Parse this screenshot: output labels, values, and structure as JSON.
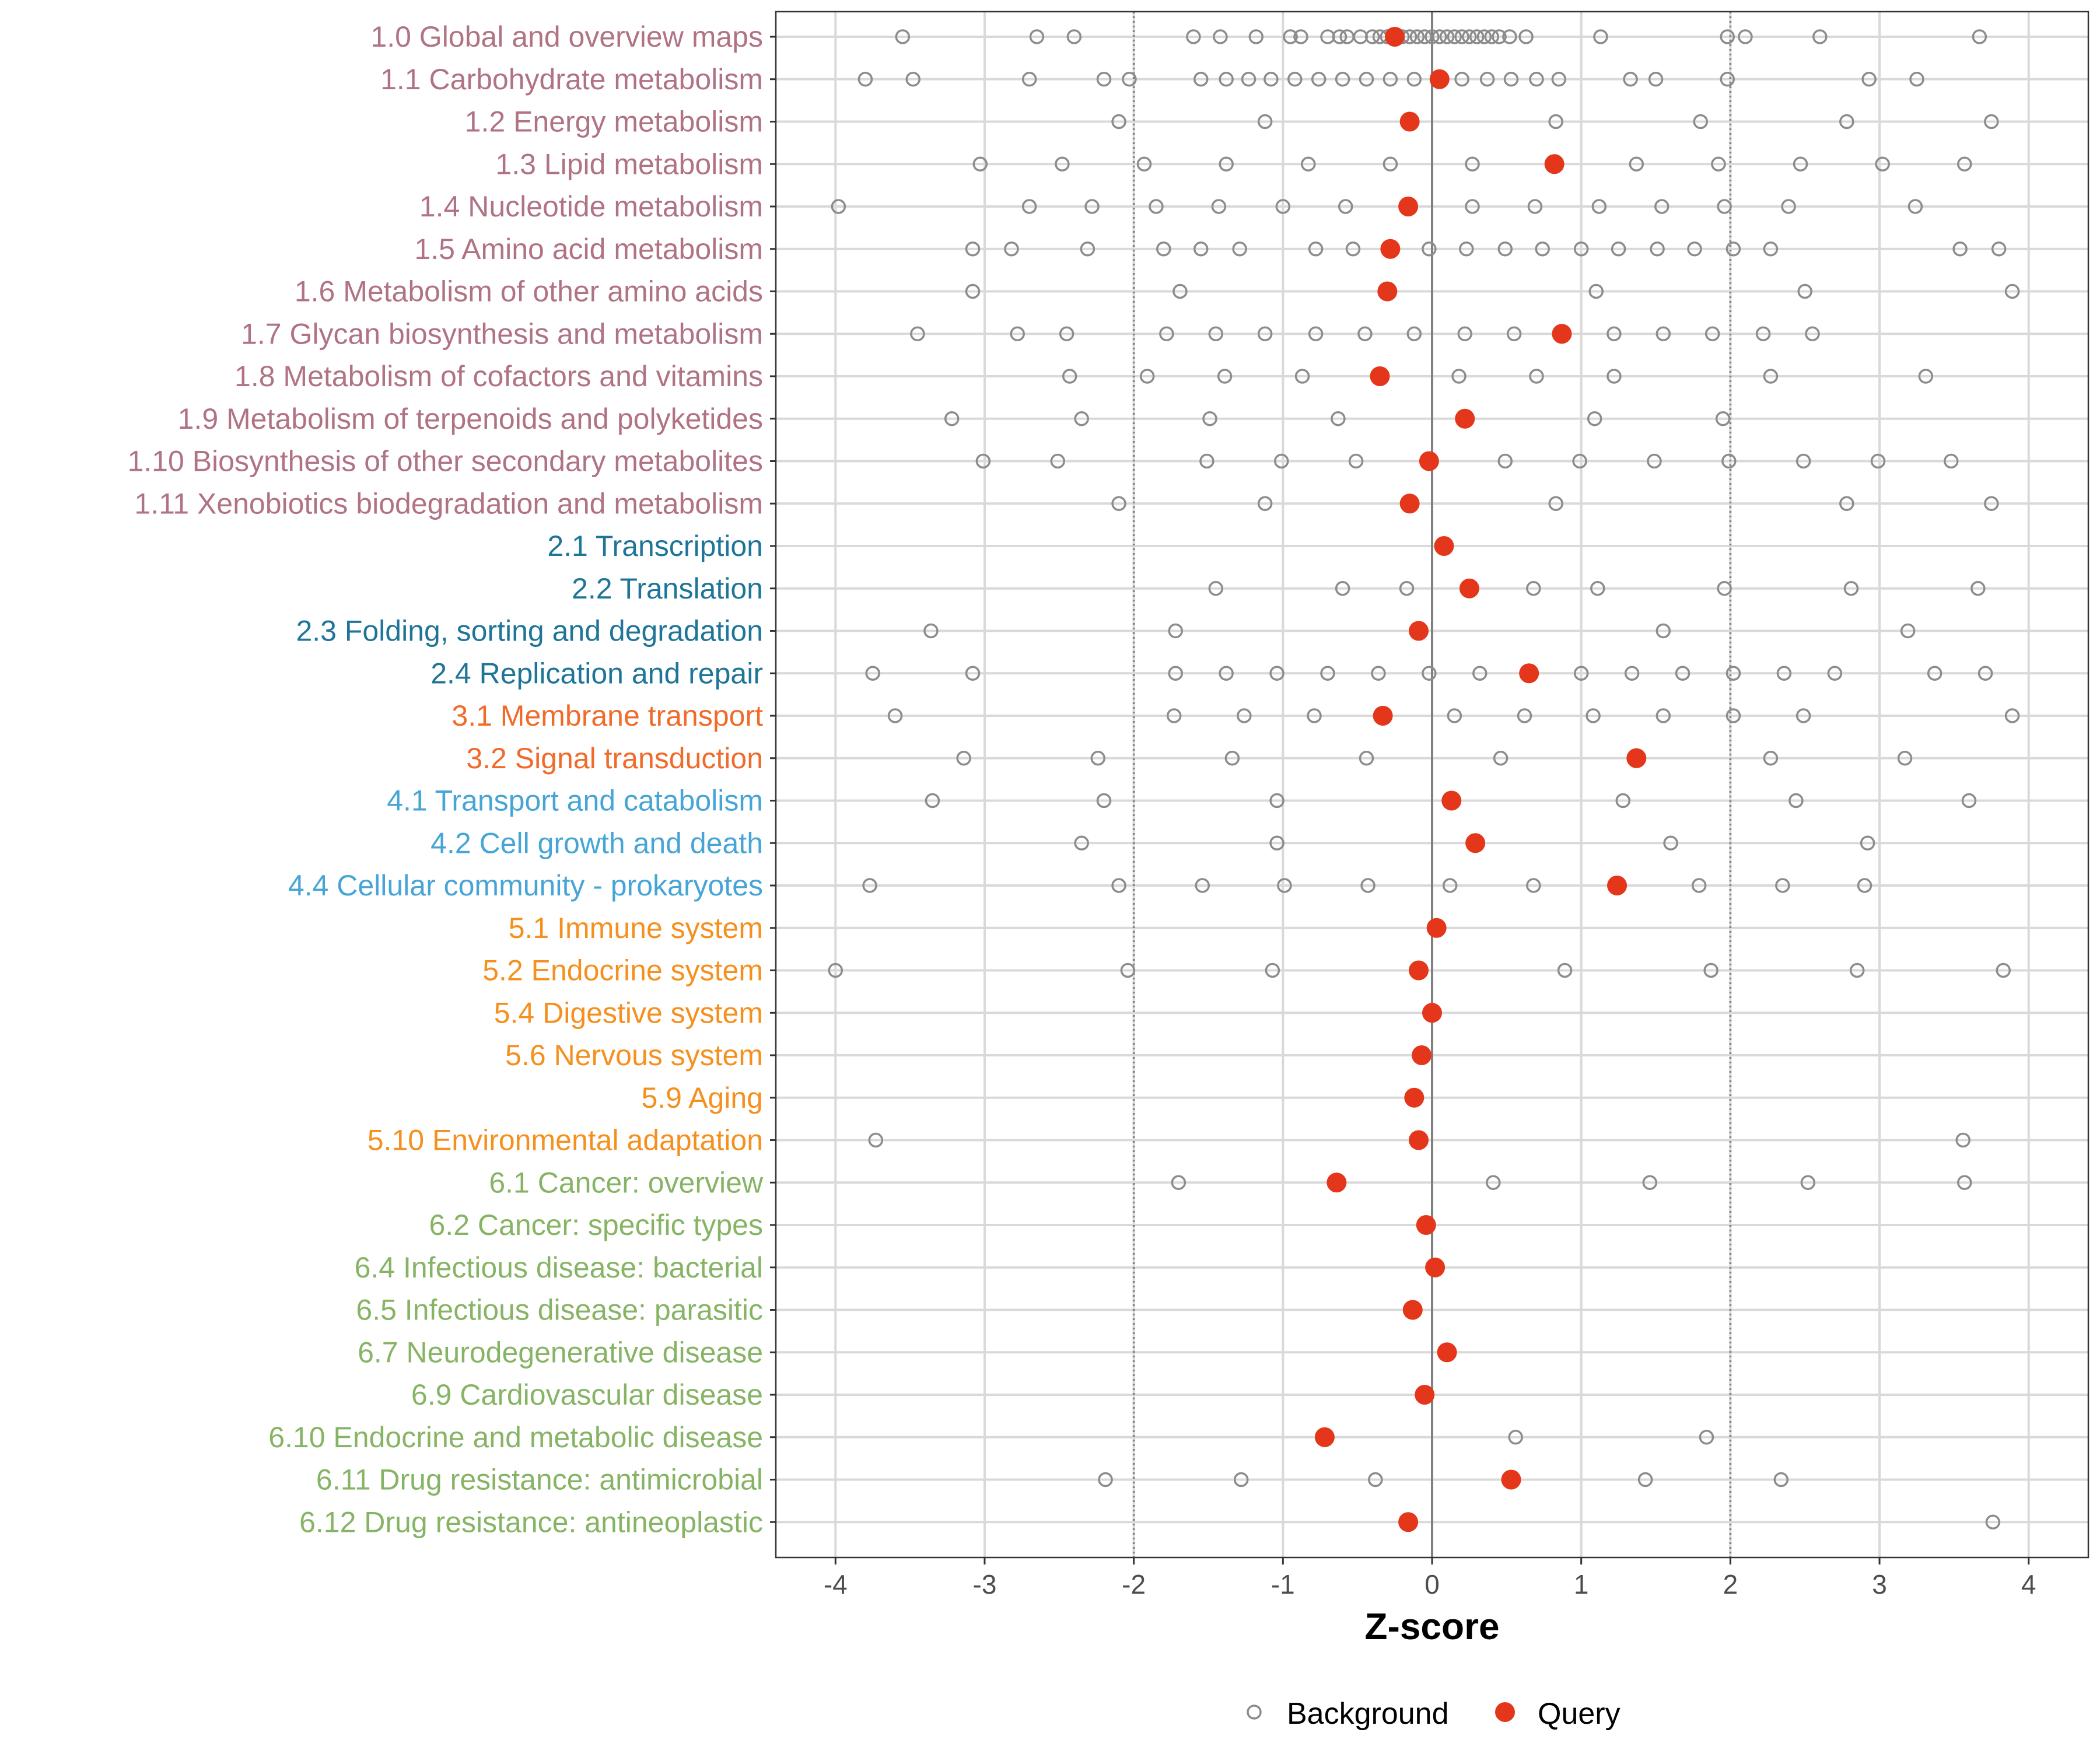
{
  "chart_data": {
    "type": "scatter",
    "xlabel": "Z-score",
    "ylabel": "",
    "xlim": [
      -4.4,
      4.4
    ],
    "xticks": [
      -4,
      -3,
      -2,
      -1,
      0,
      1,
      2,
      3,
      4
    ],
    "xtick_labels": [
      "-4",
      "-3",
      "-2",
      "-1",
      "0",
      "1",
      "2",
      "3",
      "4"
    ],
    "reference_lines": {
      "dotted": [
        -2,
        2
      ],
      "solid": [
        0
      ]
    },
    "grid": true,
    "legend_position": "bottom",
    "legend": [
      {
        "name": "Background",
        "style": "hollow-circle",
        "color": "#8c8c8c"
      },
      {
        "name": "Query",
        "style": "filled-circle",
        "color": "#e3361a"
      }
    ],
    "category_colors": {
      "metabolism": "#b07383",
      "genetic": "#1e7597",
      "environmental": "#f06a2a",
      "cellular": "#46a5d6",
      "organismal": "#f5901e",
      "disease": "#86b464"
    },
    "categories": [
      {
        "label": "1.0 Global and overview maps",
        "group": "metabolism",
        "query": -0.25,
        "background": [
          -3.55,
          -2.65,
          -2.4,
          -1.6,
          -1.42,
          -1.18,
          -0.95,
          -0.88,
          -0.7,
          -0.62,
          -0.57,
          -0.48,
          -0.4,
          -0.35,
          -0.3,
          -0.2,
          -0.15,
          -0.1,
          -0.05,
          0.0,
          0.05,
          0.1,
          0.15,
          0.2,
          0.25,
          0.3,
          0.35,
          0.4,
          0.45,
          0.52,
          0.63,
          1.13,
          1.98,
          2.1,
          2.6,
          3.67
        ]
      },
      {
        "label": "1.1 Carbohydrate metabolism",
        "group": "metabolism",
        "query": 0.05,
        "background": [
          -3.8,
          -3.48,
          -2.7,
          -2.2,
          -2.03,
          -1.55,
          -1.38,
          -1.23,
          -1.08,
          -0.92,
          -0.76,
          -0.6,
          -0.44,
          -0.28,
          -0.12,
          0.2,
          0.37,
          0.53,
          0.7,
          0.85,
          1.33,
          1.5,
          1.98,
          2.93,
          3.25
        ]
      },
      {
        "label": "1.2 Energy metabolism",
        "group": "metabolism",
        "query": -0.15,
        "background": [
          -2.1,
          -1.12,
          0.83,
          1.8,
          2.78,
          3.75
        ]
      },
      {
        "label": "1.3 Lipid metabolism",
        "group": "metabolism",
        "query": 0.82,
        "background": [
          -3.03,
          -2.48,
          -1.93,
          -1.38,
          -0.83,
          -0.28,
          0.27,
          1.37,
          1.92,
          2.47,
          3.02,
          3.57
        ]
      },
      {
        "label": "1.4 Nucleotide metabolism",
        "group": "metabolism",
        "query": -0.16,
        "background": [
          -3.98,
          -2.7,
          -2.28,
          -1.85,
          -1.43,
          -1.0,
          -0.58,
          0.27,
          0.69,
          1.12,
          1.54,
          1.96,
          2.39,
          3.24
        ]
      },
      {
        "label": "1.5 Amino acid metabolism",
        "group": "metabolism",
        "query": -0.28,
        "background": [
          -3.08,
          -2.82,
          -2.31,
          -1.8,
          -1.55,
          -1.29,
          -0.78,
          -0.53,
          -0.02,
          0.23,
          0.49,
          0.74,
          1.0,
          1.25,
          1.51,
          1.76,
          2.02,
          2.27,
          3.54,
          3.8
        ]
      },
      {
        "label": "1.6 Metabolism of other amino acids",
        "group": "metabolism",
        "query": -0.3,
        "background": [
          -3.08,
          -1.69,
          1.1,
          2.5,
          3.89
        ]
      },
      {
        "label": "1.7 Glycan biosynthesis and metabolism",
        "group": "metabolism",
        "query": 0.87,
        "background": [
          -3.45,
          -2.78,
          -2.45,
          -1.78,
          -1.45,
          -1.12,
          -0.78,
          -0.45,
          -0.12,
          0.22,
          0.55,
          1.22,
          1.55,
          1.88,
          2.22,
          2.55
        ]
      },
      {
        "label": "1.8 Metabolism of cofactors and vitamins",
        "group": "metabolism",
        "query": -0.35,
        "background": [
          -2.43,
          -1.91,
          -1.39,
          -0.87,
          0.18,
          0.7,
          1.22,
          2.27,
          3.31
        ]
      },
      {
        "label": "1.9 Metabolism of terpenoids and polyketides",
        "group": "metabolism",
        "query": 0.22,
        "background": [
          -3.22,
          -2.35,
          -1.49,
          -0.63,
          1.09,
          1.95
        ]
      },
      {
        "label": "1.10 Biosynthesis of other secondary metabolites",
        "group": "metabolism",
        "query": -0.02,
        "background": [
          -3.01,
          -2.51,
          -1.51,
          -1.01,
          -0.51,
          0.49,
          0.99,
          1.49,
          1.99,
          2.49,
          2.99,
          3.48
        ]
      },
      {
        "label": "1.11 Xenobiotics biodegradation and metabolism",
        "group": "metabolism",
        "query": -0.15,
        "background": [
          -2.1,
          -1.12,
          0.83,
          2.78,
          3.75
        ]
      },
      {
        "label": "2.1 Transcription",
        "group": "genetic",
        "query": 0.08,
        "background": []
      },
      {
        "label": "2.2 Translation",
        "group": "genetic",
        "query": 0.25,
        "background": [
          -1.45,
          -0.6,
          -0.17,
          0.68,
          1.11,
          1.96,
          2.81,
          3.66
        ]
      },
      {
        "label": "2.3 Folding, sorting and degradation",
        "group": "genetic",
        "query": -0.09,
        "background": [
          -3.36,
          -1.72,
          1.55,
          3.19
        ]
      },
      {
        "label": "2.4 Replication and repair",
        "group": "genetic",
        "query": 0.65,
        "background": [
          -3.75,
          -3.08,
          -1.72,
          -1.38,
          -1.04,
          -0.7,
          -0.36,
          -0.02,
          0.32,
          1.0,
          1.34,
          1.68,
          2.02,
          2.36,
          2.7,
          3.37,
          3.71
        ]
      },
      {
        "label": "3.1 Membrane transport",
        "group": "environmental",
        "query": -0.33,
        "background": [
          -3.6,
          -1.73,
          -1.26,
          -0.79,
          0.15,
          0.62,
          1.08,
          1.55,
          2.02,
          2.49,
          3.89
        ]
      },
      {
        "label": "3.2 Signal transduction",
        "group": "environmental",
        "query": 1.37,
        "background": [
          -3.14,
          -2.24,
          -1.34,
          -0.44,
          0.46,
          2.27,
          3.17
        ]
      },
      {
        "label": "4.1 Transport and catabolism",
        "group": "cellular",
        "query": 0.13,
        "background": [
          -3.35,
          -2.2,
          -1.04,
          1.28,
          2.44,
          3.6
        ]
      },
      {
        "label": "4.2 Cell growth and death",
        "group": "cellular",
        "query": 0.29,
        "background": [
          -2.35,
          -1.04,
          1.6,
          2.92
        ]
      },
      {
        "label": "4.4 Cellular community - prokaryotes",
        "group": "cellular",
        "query": 1.24,
        "background": [
          -3.77,
          -2.1,
          -1.54,
          -0.99,
          -0.43,
          0.12,
          0.68,
          1.79,
          2.35,
          2.9
        ]
      },
      {
        "label": "5.1 Immune system",
        "group": "organismal",
        "query": 0.03,
        "background": []
      },
      {
        "label": "5.2 Endocrine system",
        "group": "organismal",
        "query": -0.09,
        "background": [
          -4.0,
          -2.04,
          -1.07,
          0.89,
          1.87,
          2.85,
          3.83
        ]
      },
      {
        "label": "5.4 Digestive system",
        "group": "organismal",
        "query": 0.0,
        "background": []
      },
      {
        "label": "5.6 Nervous system",
        "group": "organismal",
        "query": -0.07,
        "background": []
      },
      {
        "label": "5.9 Aging",
        "group": "organismal",
        "query": -0.12,
        "background": []
      },
      {
        "label": "5.10 Environmental adaptation",
        "group": "organismal",
        "query": -0.09,
        "background": [
          -3.73,
          3.56
        ]
      },
      {
        "label": "6.1 Cancer: overview",
        "group": "disease",
        "query": -0.64,
        "background": [
          -1.7,
          0.41,
          1.46,
          2.52,
          3.57
        ]
      },
      {
        "label": "6.2 Cancer: specific types",
        "group": "disease",
        "query": -0.04,
        "background": []
      },
      {
        "label": "6.4 Infectious disease: bacterial",
        "group": "disease",
        "query": 0.02,
        "background": []
      },
      {
        "label": "6.5 Infectious disease: parasitic",
        "group": "disease",
        "query": -0.13,
        "background": []
      },
      {
        "label": "6.7 Neurodegenerative disease",
        "group": "disease",
        "query": 0.1,
        "background": []
      },
      {
        "label": "6.9 Cardiovascular disease",
        "group": "disease",
        "query": -0.05,
        "background": []
      },
      {
        "label": "6.10 Endocrine and metabolic disease",
        "group": "disease",
        "query": -0.72,
        "background": [
          0.56,
          1.84
        ]
      },
      {
        "label": "6.11 Drug resistance: antimicrobial",
        "group": "disease",
        "query": 0.53,
        "background": [
          -2.19,
          -1.28,
          -0.38,
          1.43,
          2.34
        ]
      },
      {
        "label": "6.12 Drug resistance: antineoplastic",
        "group": "disease",
        "query": -0.16,
        "background": [
          3.76
        ]
      }
    ]
  }
}
